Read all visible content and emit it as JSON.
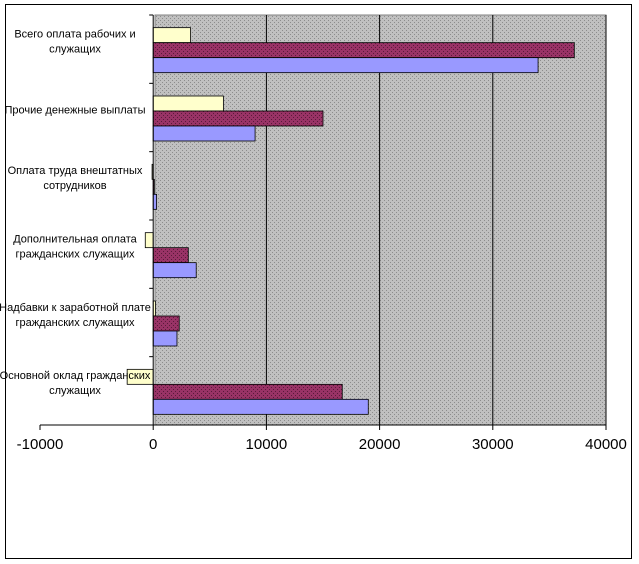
{
  "chart_data": {
    "type": "bar",
    "orientation": "horizontal",
    "categories": [
      [
        "Всего оплата рабочих и",
        "служащих"
      ],
      [
        "Прочие денежные выплаты"
      ],
      [
        "Оплата труда внештатных",
        "сотрудников"
      ],
      [
        "Дополнительная оплата",
        "гражданских служащих"
      ],
      [
        "Надбавки к заработной плате",
        "гражданских служащих"
      ],
      [
        "Основной оклад гражданских",
        "служащих"
      ]
    ],
    "series": [
      {
        "values": [
          3300,
          6200,
          -100,
          -700,
          200,
          -2300
        ],
        "color": "#ffffcc"
      },
      {
        "values": [
          37200,
          15000,
          50,
          3100,
          2300,
          16700
        ],
        "color": "#993366"
      },
      {
        "values": [
          34000,
          9000,
          300,
          3800,
          2100,
          19000
        ],
        "color": "#9999ff"
      }
    ],
    "x_ticks": [
      "-10000",
      "0",
      "10000",
      "20000",
      "30000",
      "40000"
    ],
    "xlim": [
      -10000,
      40000
    ],
    "grid": true,
    "plot_background": "#c0c0c0",
    "legend": "none"
  }
}
